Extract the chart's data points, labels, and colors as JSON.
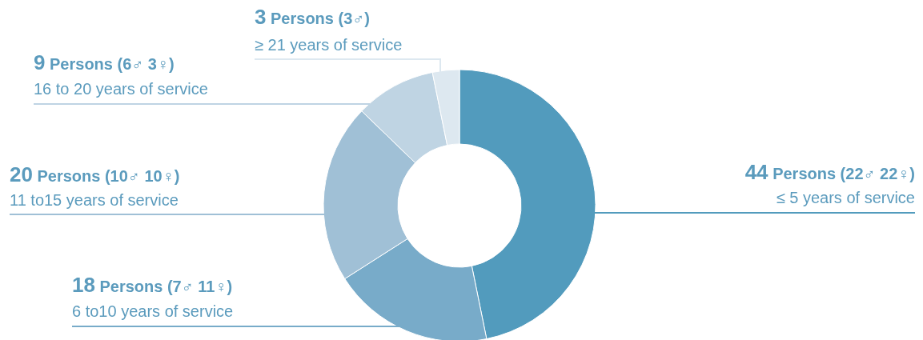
{
  "chart_data": {
    "type": "donut",
    "categories": [
      "≤ 5 years of service",
      "6 to10 years of service",
      "11 to15 years of service",
      "16 to 20 years of service",
      "≥ 21 years of service"
    ],
    "values": [
      44,
      18,
      20,
      9,
      3
    ],
    "colors": [
      "#529bbd",
      "#78abc9",
      "#a0c0d6",
      "#bfd4e3",
      "#dde8f0"
    ],
    "value_labels": [
      "44 Persons (22♂ 22♀)",
      "18 Persons (7♂ 11♀)",
      "20 Persons (10♂ 10♀)",
      "9 Persons (6♂ 3♀)",
      "3 Persons (3♂)"
    ],
    "legend": false
  }
}
